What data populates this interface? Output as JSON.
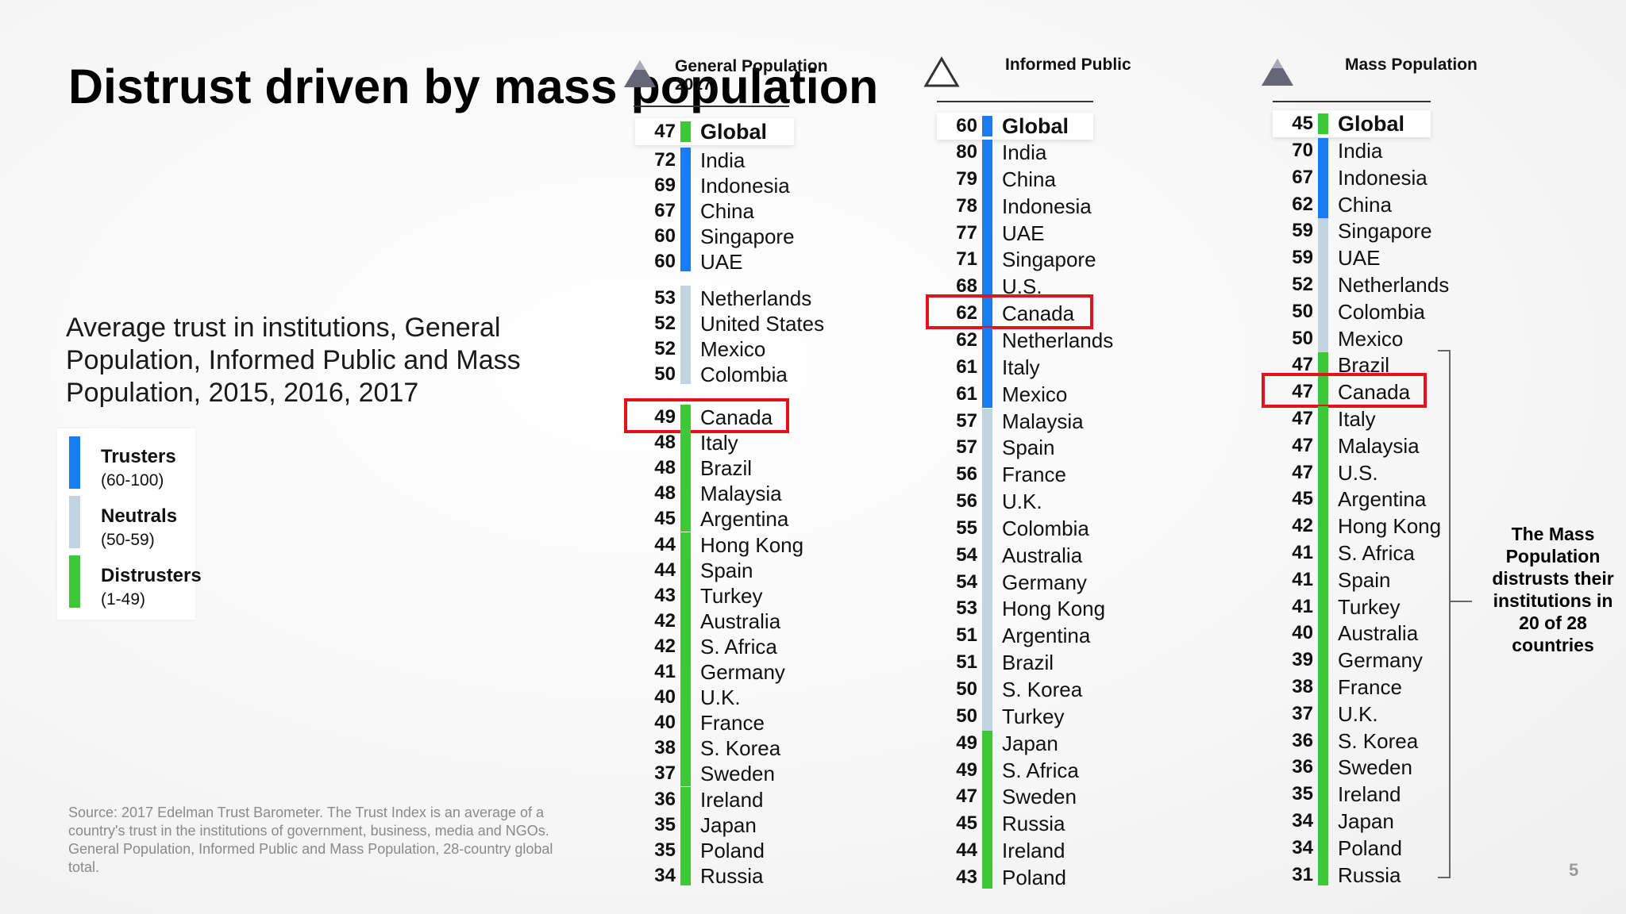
{
  "title": "Distrust driven by mass population",
  "subtitle": "Average trust in institutions, General Population, Informed Public and Mass Population, 2015, 2016, 2017",
  "legend": [
    {
      "name": "Trusters",
      "range": "(60-100)",
      "color": "#1a7cf0"
    },
    {
      "name": "Neutrals",
      "range": "(50-59)",
      "color": "#c2d4e0"
    },
    {
      "name": "Distrusters",
      "range": "(1-49)",
      "color": "#3ec739"
    }
  ],
  "source": "Source: 2017 Edelman Trust Barometer. The Trust Index is an average of a country's trust in the institutions of government, business, media and NGOs. General Population, Informed Public and Mass Population, 28-country global total.",
  "page_number": "5",
  "note": "The Mass Population distrusts their institutions in 20 of 28 countries",
  "colors": {
    "trusters": "#1a7cf0",
    "neutrals": "#c2d4e0",
    "distrusters": "#3ec739",
    "highlight": "#e3131b"
  },
  "columns": [
    {
      "header": "General Population 2017",
      "icon": "triangle-filled-icon",
      "global": {
        "value": "47",
        "label": "Global"
      },
      "highlight": "Canada",
      "rows": [
        {
          "value": "72",
          "name": "India"
        },
        {
          "value": "69",
          "name": "Indonesia"
        },
        {
          "value": "67",
          "name": "China"
        },
        {
          "value": "60",
          "name": "Singapore"
        },
        {
          "value": "60",
          "name": "UAE"
        },
        {
          "value": "53",
          "name": "Netherlands"
        },
        {
          "value": "52",
          "name": "United States"
        },
        {
          "value": "52",
          "name": "Mexico"
        },
        {
          "value": "50",
          "name": "Colombia"
        },
        {
          "value": "49",
          "name": "Canada"
        },
        {
          "value": "48",
          "name": "Italy"
        },
        {
          "value": "48",
          "name": "Brazil"
        },
        {
          "value": "48",
          "name": "Malaysia"
        },
        {
          "value": "45",
          "name": "Argentina"
        },
        {
          "value": "44",
          "name": "Hong Kong"
        },
        {
          "value": "44",
          "name": "Spain"
        },
        {
          "value": "43",
          "name": "Turkey"
        },
        {
          "value": "42",
          "name": "Australia"
        },
        {
          "value": "42",
          "name": "S. Africa"
        },
        {
          "value": "41",
          "name": "Germany"
        },
        {
          "value": "40",
          "name": "U.K."
        },
        {
          "value": "40",
          "name": "France"
        },
        {
          "value": "38",
          "name": "S. Korea"
        },
        {
          "value": "37",
          "name": "Sweden"
        },
        {
          "value": "36",
          "name": "Ireland"
        },
        {
          "value": "35",
          "name": "Japan"
        },
        {
          "value": "35",
          "name": "Poland"
        },
        {
          "value": "34",
          "name": "Russia"
        }
      ]
    },
    {
      "header": "Informed Public",
      "icon": "triangle-outline-icon",
      "global": {
        "value": "60",
        "label": "Global"
      },
      "highlight": "Canada",
      "rows": [
        {
          "value": "80",
          "name": "India"
        },
        {
          "value": "79",
          "name": "China"
        },
        {
          "value": "78",
          "name": "Indonesia"
        },
        {
          "value": "77",
          "name": "UAE"
        },
        {
          "value": "71",
          "name": "Singapore"
        },
        {
          "value": "68",
          "name": "U.S."
        },
        {
          "value": "62",
          "name": "Canada"
        },
        {
          "value": "62",
          "name": "Netherlands"
        },
        {
          "value": "61",
          "name": "Italy"
        },
        {
          "value": "61",
          "name": "Mexico"
        },
        {
          "value": "57",
          "name": "Malaysia"
        },
        {
          "value": "57",
          "name": "Spain"
        },
        {
          "value": "56",
          "name": "France"
        },
        {
          "value": "56",
          "name": "U.K."
        },
        {
          "value": "55",
          "name": "Colombia"
        },
        {
          "value": "54",
          "name": "Australia"
        },
        {
          "value": "54",
          "name": "Germany"
        },
        {
          "value": "53",
          "name": "Hong Kong"
        },
        {
          "value": "51",
          "name": "Argentina"
        },
        {
          "value": "51",
          "name": "Brazil"
        },
        {
          "value": "50",
          "name": "S. Korea"
        },
        {
          "value": "50",
          "name": "Turkey"
        },
        {
          "value": "49",
          "name": "Japan"
        },
        {
          "value": "49",
          "name": "S. Africa"
        },
        {
          "value": "47",
          "name": "Sweden"
        },
        {
          "value": "45",
          "name": "Russia"
        },
        {
          "value": "44",
          "name": "Ireland"
        },
        {
          "value": "43",
          "name": "Poland"
        }
      ]
    },
    {
      "header": "Mass Population",
      "icon": "triangle-filled-icon",
      "global": {
        "value": "45",
        "label": "Global"
      },
      "highlight": "Canada",
      "rows": [
        {
          "value": "70",
          "name": "India"
        },
        {
          "value": "67",
          "name": "Indonesia"
        },
        {
          "value": "62",
          "name": "China"
        },
        {
          "value": "59",
          "name": "Singapore"
        },
        {
          "value": "59",
          "name": "UAE"
        },
        {
          "value": "52",
          "name": "Netherlands"
        },
        {
          "value": "50",
          "name": "Colombia"
        },
        {
          "value": "50",
          "name": "Mexico"
        },
        {
          "value": "47",
          "name": "Brazil"
        },
        {
          "value": "47",
          "name": "Canada"
        },
        {
          "value": "47",
          "name": "Italy"
        },
        {
          "value": "47",
          "name": "Malaysia"
        },
        {
          "value": "47",
          "name": "U.S."
        },
        {
          "value": "45",
          "name": "Argentina"
        },
        {
          "value": "42",
          "name": "Hong Kong"
        },
        {
          "value": "41",
          "name": "S. Africa"
        },
        {
          "value": "41",
          "name": "Spain"
        },
        {
          "value": "41",
          "name": "Turkey"
        },
        {
          "value": "40",
          "name": "Australia"
        },
        {
          "value": "39",
          "name": "Germany"
        },
        {
          "value": "38",
          "name": "France"
        },
        {
          "value": "37",
          "name": "U.K."
        },
        {
          "value": "36",
          "name": "S. Korea"
        },
        {
          "value": "36",
          "name": "Sweden"
        },
        {
          "value": "35",
          "name": "Ireland"
        },
        {
          "value": "34",
          "name": "Japan"
        },
        {
          "value": "34",
          "name": "Poland"
        },
        {
          "value": "31",
          "name": "Russia"
        }
      ]
    }
  ]
}
